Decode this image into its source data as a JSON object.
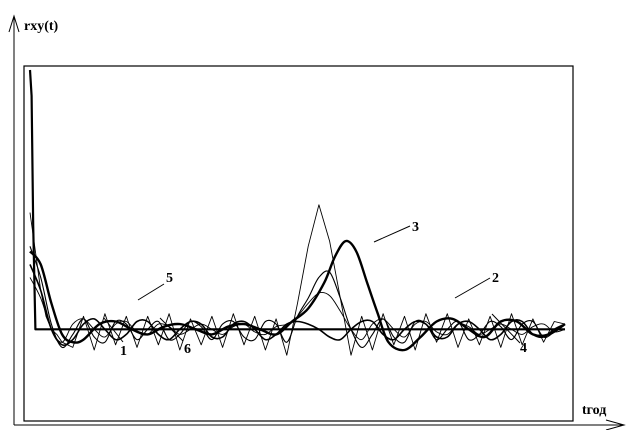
{
  "chart_data": {
    "type": "line",
    "ylabel": "rxy(t)",
    "xlabel": "tгод",
    "xlim": [
      0,
      100
    ],
    "ylim": [
      -0.35,
      1.0
    ],
    "grid": false,
    "series": [
      {
        "label": "1",
        "x": [
          0,
          0.3,
          0.6,
          1,
          2,
          3,
          100
        ],
        "y": [
          1.0,
          0.9,
          0.4,
          0,
          0,
          0,
          0
        ]
      },
      {
        "label": "2",
        "x": [
          0,
          2,
          4,
          6,
          8,
          10,
          13,
          16,
          19,
          22,
          25,
          28,
          31,
          34,
          37,
          40,
          43,
          46,
          49,
          52,
          55,
          57,
          59,
          61,
          63,
          65,
          67,
          70,
          73,
          76,
          79,
          82,
          85,
          88,
          91,
          94,
          97,
          100
        ],
        "y": [
          0.3,
          0.25,
          0.1,
          -0.02,
          -0.05,
          -0.04,
          0.02,
          0.03,
          0,
          -0.02,
          0.01,
          0.02,
          0,
          -0.02,
          0.01,
          0.02,
          0,
          -0.02,
          0.03,
          0.08,
          0.18,
          0.28,
          0.34,
          0.3,
          0.18,
          0.06,
          -0.05,
          -0.08,
          -0.03,
          0.03,
          0.04,
          0,
          -0.03,
          0.03,
          0.03,
          -0.02,
          -0.02,
          0.02
        ]
      },
      {
        "label": "3",
        "x": [
          0,
          1,
          2,
          3,
          4,
          5,
          6,
          8,
          10,
          12,
          14,
          16,
          18,
          20,
          22,
          24,
          26,
          28,
          30,
          32,
          34,
          36,
          38,
          40,
          42,
          44,
          46,
          48,
          50,
          52,
          54,
          56,
          58,
          60,
          62,
          64,
          66,
          68,
          70,
          72,
          74,
          76,
          78,
          80,
          82,
          84,
          86,
          88,
          90,
          92,
          94,
          96,
          98,
          100
        ],
        "y": [
          0.45,
          0.3,
          0.15,
          0.05,
          0,
          -0.02,
          -0.05,
          -0.07,
          0.05,
          -0.08,
          0.06,
          -0.06,
          0.05,
          -0.07,
          0.05,
          -0.06,
          0.06,
          -0.08,
          0.04,
          -0.06,
          0.05,
          -0.07,
          0.06,
          -0.06,
          0.05,
          -0.08,
          0.04,
          -0.1,
          0.1,
          0.32,
          0.48,
          0.34,
          0.12,
          -0.1,
          0.05,
          -0.08,
          0.06,
          -0.06,
          0.05,
          -0.08,
          0.06,
          -0.05,
          0.06,
          -0.07,
          0.04,
          -0.06,
          0.05,
          -0.07,
          0.06,
          -0.06,
          0.04,
          -0.05,
          0.03,
          0.02
        ]
      },
      {
        "label": "4",
        "x": [
          0,
          2,
          4,
          6,
          8,
          10,
          12,
          14,
          16,
          18,
          20,
          22,
          24,
          26,
          28,
          30,
          32,
          34,
          36,
          38,
          40,
          42,
          44,
          46,
          48,
          50,
          52,
          54,
          56,
          58,
          60,
          62,
          64,
          66,
          68,
          70,
          72,
          74,
          76,
          78,
          80,
          82,
          84,
          86,
          88,
          90,
          92,
          94,
          96,
          98,
          100
        ],
        "y": [
          0.32,
          0.2,
          0.02,
          -0.07,
          -0.02,
          0.04,
          -0.03,
          -0.05,
          0.03,
          0.02,
          -0.04,
          0.0,
          0.03,
          -0.04,
          -0.02,
          0.03,
          0.01,
          -0.04,
          0.02,
          0.03,
          -0.03,
          -0.04,
          0.03,
          0.02,
          -0.05,
          0.05,
          0.12,
          0.2,
          0.22,
          0.12,
          0.0,
          -0.07,
          -0.02,
          0.04,
          -0.03,
          -0.05,
          0.03,
          0.02,
          -0.04,
          0.0,
          0.03,
          -0.04,
          -0.02,
          0.03,
          0.01,
          -0.04,
          0.02,
          0.03,
          -0.03,
          -0.01,
          0.02
        ]
      },
      {
        "label": "5",
        "x": [
          0,
          2,
          4,
          6,
          8,
          10,
          12,
          14,
          16,
          18,
          20,
          22,
          24,
          26,
          28,
          30,
          32,
          34,
          36,
          38,
          40,
          42,
          44,
          46,
          48,
          50,
          52,
          54,
          56,
          58,
          60,
          62,
          64,
          66,
          68,
          70,
          72,
          74,
          76,
          78,
          80,
          82,
          84,
          86,
          88,
          90,
          92,
          94,
          96,
          98,
          100
        ],
        "y": [
          0.2,
          0.12,
          0.0,
          -0.05,
          0.02,
          0.04,
          0.0,
          -0.03,
          0.02,
          0.03,
          -0.01,
          -0.02,
          0.02,
          0.01,
          -0.02,
          0.0,
          0.02,
          0.0,
          -0.02,
          0.01,
          0.02,
          -0.01,
          -0.02,
          0.01,
          0.02,
          0.05,
          0.1,
          0.14,
          0.13,
          0.07,
          0.0,
          -0.04,
          0.02,
          0.04,
          0.0,
          -0.03,
          0.02,
          0.03,
          -0.01,
          -0.02,
          0.02,
          0.01,
          -0.02,
          0.0,
          0.02,
          0.0,
          -0.02,
          0.01,
          0.02,
          -0.01,
          0.0
        ]
      },
      {
        "label": "6",
        "x": [
          0,
          2,
          4,
          6,
          8,
          10,
          12,
          14,
          16,
          18,
          20,
          22,
          24,
          26,
          28,
          30,
          32,
          34,
          36,
          38,
          40,
          42,
          44,
          46,
          48,
          50,
          52,
          54,
          56,
          58,
          60,
          62,
          64,
          66,
          68,
          70,
          72,
          74,
          76,
          78,
          80,
          82,
          84,
          86,
          88,
          90,
          92,
          94,
          96,
          98,
          100
        ],
        "y": [
          0.25,
          0.15,
          0.0,
          -0.06,
          -0.04,
          0.02,
          0.04,
          0.0,
          -0.04,
          -0.02,
          0.03,
          0.03,
          -0.02,
          -0.04,
          0.0,
          0.03,
          0.02,
          -0.03,
          -0.03,
          0.02,
          0.03,
          0.0,
          -0.04,
          -0.02,
          0.02,
          0.03,
          0.02,
          0.0,
          -0.03,
          -0.04,
          0.0,
          0.03,
          0.03,
          -0.02,
          -0.04,
          0.0,
          0.03,
          0.02,
          -0.03,
          -0.03,
          0.02,
          0.03,
          0.0,
          -0.04,
          -0.02,
          0.03,
          0.03,
          -0.02,
          -0.03,
          0.0,
          0.02
        ]
      }
    ]
  }
}
